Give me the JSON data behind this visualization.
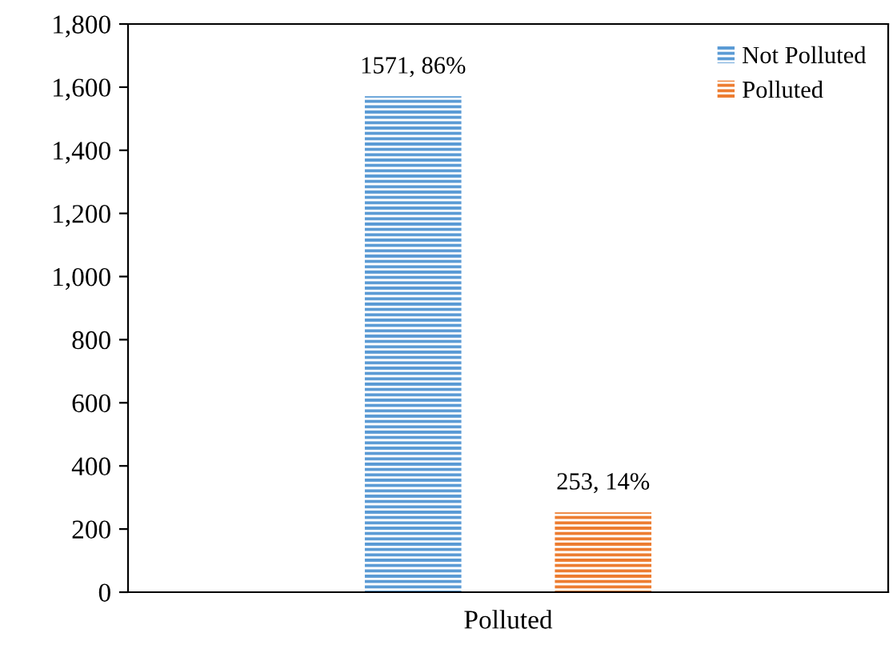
{
  "chart_data": {
    "type": "bar",
    "categories": [
      "Polluted"
    ],
    "series": [
      {
        "name": "Not Polluted",
        "color": "#5b9bd5",
        "values": [
          1571
        ],
        "value_labels": [
          "1571, 86%"
        ]
      },
      {
        "name": "Polluted",
        "color": "#ed7d31",
        "values": [
          253
        ],
        "value_labels": [
          "253, 14%"
        ]
      }
    ],
    "ylim": [
      0,
      1800
    ],
    "yticks": [
      0,
      200,
      400,
      600,
      800,
      {
        "value": 1000,
        "label": "1,000"
      },
      {
        "value": 1200,
        "label": "1,200"
      },
      {
        "value": 1400,
        "label": "1,400"
      },
      {
        "value": 1600,
        "label": "1,600"
      },
      {
        "value": 1800,
        "label": "1,800"
      }
    ],
    "legend": "top right"
  }
}
